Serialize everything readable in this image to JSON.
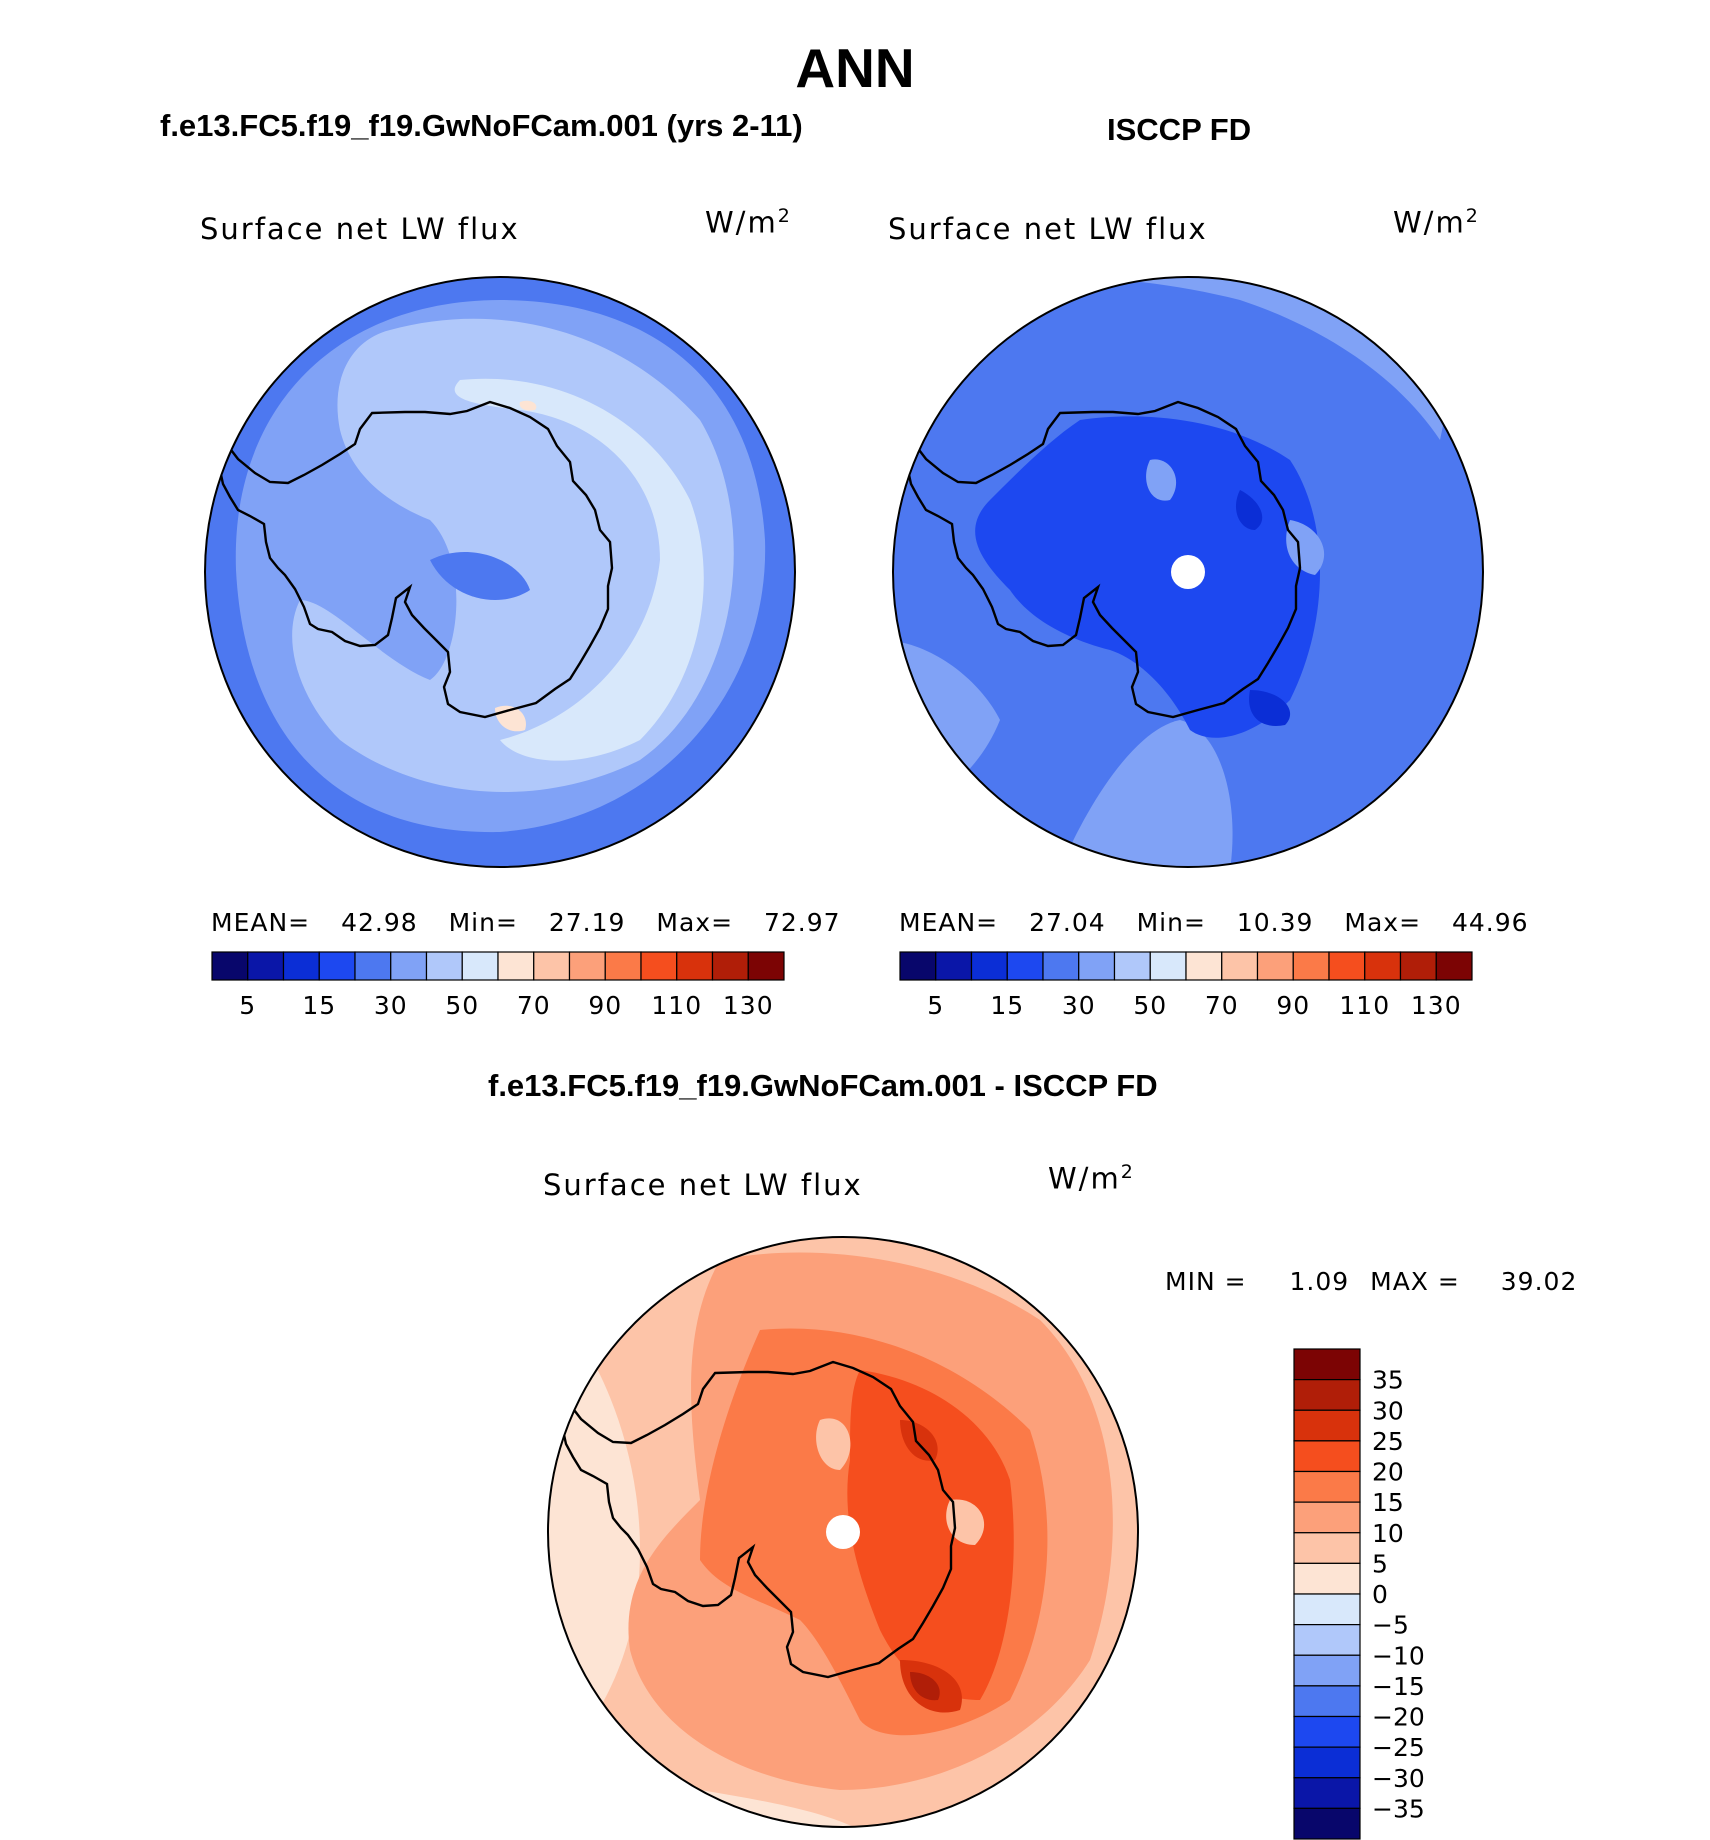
{
  "title": "ANN",
  "case_title": "f.e13.FC5.f19_f19.GwNoFCam.001 (yrs 2-11)",
  "obs_title": "ISCCP FD",
  "diff_title": "f.e13.FC5.f19_f19.GwNoFCam.001 - ISCCP FD",
  "panels": [
    {
      "label": "Surface net LW flux",
      "units": "W/m",
      "units_sup": "2",
      "mean_label": "MEAN=",
      "mean": "42.98",
      "min_label": "Min=",
      "min": "27.19",
      "max_label": "Max=",
      "max": "72.97"
    },
    {
      "label": "Surface net LW flux",
      "units": "W/m",
      "units_sup": "2",
      "mean_label": "MEAN=",
      "mean": "27.04",
      "min_label": "Min=",
      "min": "10.39",
      "max_label": "Max=",
      "max": "44.96"
    },
    {
      "label": "Surface net LW flux",
      "units": "W/m",
      "units_sup": "2",
      "min_label": "MIN =",
      "min": "1.09",
      "max_label": "MAX =",
      "max": "39.02"
    }
  ],
  "colorbar_abs": {
    "colors": [
      "#08066b",
      "#0a16a8",
      "#0b2ed6",
      "#1d48f0",
      "#4d78f0",
      "#80a2f6",
      "#b0c8fa",
      "#d8e8fb",
      "#fde4d4",
      "#fdc4a8",
      "#fca07a",
      "#fb7a48",
      "#f54e1e",
      "#d8320c",
      "#b01e08",
      "#7c0404"
    ],
    "ticks": [
      "5",
      "15",
      "30",
      "50",
      "70",
      "90",
      "110",
      "130"
    ]
  },
  "colorbar_diff": {
    "colors": [
      "#7c0404",
      "#b01e08",
      "#d8320c",
      "#f54e1e",
      "#fb7a48",
      "#fca07a",
      "#fdc4a8",
      "#fde4d4",
      "#d8e8fb",
      "#b0c8fa",
      "#80a2f6",
      "#4d78f0",
      "#1d48f0",
      "#0b2ed6",
      "#0a16a8",
      "#08066b"
    ],
    "ticks": [
      "35",
      "30",
      "25",
      "20",
      "15",
      "10",
      "5",
      "0",
      "−5",
      "−10",
      "−15",
      "−20",
      "−25",
      "−30",
      "−35"
    ]
  },
  "map_colors": {
    "case_bg": "#80a2f6",
    "case_mid": "#b0c8fa",
    "case_light": "#d8e8fb",
    "case_dark": "#4d78f0",
    "case_warm": "#fde4d4",
    "obs_bg": "#4d78f0",
    "obs_mid": "#80a2f6",
    "obs_dark": "#1d48f0",
    "obs_darker": "#0b2ed6",
    "diff_bg": "#fdc4a8",
    "diff_mid": "#fca07a",
    "diff_red": "#fb7a48",
    "diff_deep": "#f54e1e",
    "diff_darker": "#d8320c",
    "diff_max": "#b01e08",
    "diff_light": "#fde4d4"
  }
}
